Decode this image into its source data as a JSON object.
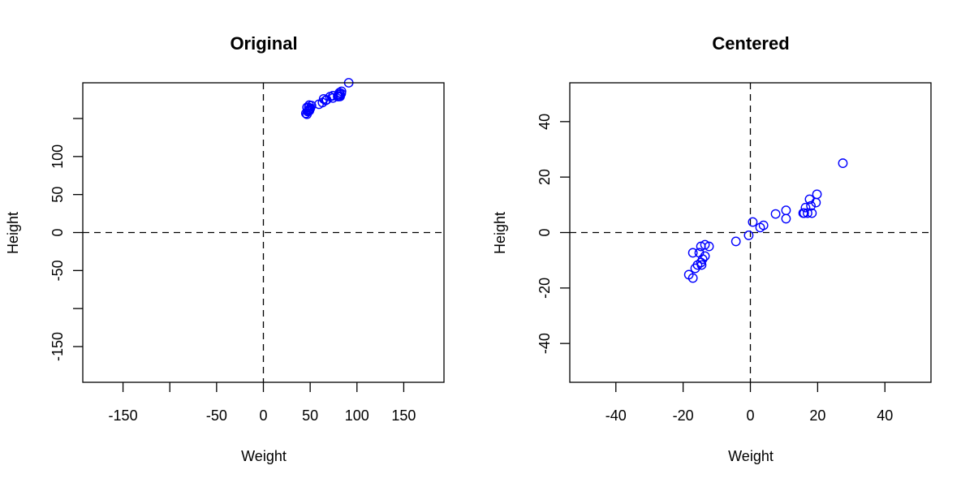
{
  "colors": {
    "points": "#0000ff",
    "axes": "#000000",
    "background": "#ffffff"
  },
  "chart_data": [
    {
      "type": "scatter",
      "title": "Original",
      "xlabel": "Weight",
      "ylabel": "Height",
      "xlim": [
        -193,
        193
      ],
      "ylim": [
        -197,
        197
      ],
      "xticks": [
        -150,
        -100,
        -50,
        0,
        50,
        100,
        150
      ],
      "xtick_labels": [
        "-150",
        "",
        "-50",
        "0",
        "50",
        "100",
        "150"
      ],
      "yticks": [
        -150,
        -100,
        -50,
        0,
        50,
        100,
        150
      ],
      "ytick_labels": [
        "-150",
        "",
        "-50",
        "0",
        "50",
        "100",
        ""
      ],
      "reference_lines": {
        "vertical": 0,
        "horizontal": 0,
        "style": "dashed"
      },
      "grid": false,
      "marker": "open-circle",
      "series": [
        {
          "name": "original",
          "x": [
            91.2,
            83.5,
            83.2,
            81.7,
            81.3,
            80.1,
            79.4,
            79.7,
            80.7,
            82.0,
            74.3,
            74.3,
            71.2,
            67.6,
            66.6,
            64.4,
            63.2,
            59.4,
            51.4,
            49.0,
            46.6,
            48.5,
            50.2,
            49.5,
            49.0,
            49.2,
            48.0,
            47.3,
            45.4,
            46.6
          ],
          "y": [
            197.0,
            185.8,
            182.8,
            181.6,
            184.0,
            181.0,
            179.0,
            179.0,
            179.0,
            179.0,
            180.0,
            177.0,
            178.7,
            174.6,
            173.8,
            175.8,
            171.0,
            168.8,
            167.0,
            167.6,
            164.7,
            164.7,
            163.5,
            162.4,
            161.2,
            160.3,
            160.3,
            159.1,
            156.8,
            155.6
          ]
        }
      ]
    },
    {
      "type": "scatter",
      "title": "Centered",
      "xlabel": "Weight",
      "ylabel": "Height",
      "xlim": [
        -53.7,
        53.7
      ],
      "ylim": [
        -54,
        54
      ],
      "xticks": [
        -40,
        -20,
        0,
        20,
        40
      ],
      "xtick_labels": [
        "-40",
        "-20",
        "0",
        "20",
        "40"
      ],
      "yticks": [
        -40,
        -20,
        0,
        20,
        40
      ],
      "ytick_labels": [
        "-40",
        "-20",
        "0",
        "20",
        "40"
      ],
      "reference_lines": {
        "vertical": 0,
        "horizontal": 0,
        "style": "dashed"
      },
      "grid": false,
      "marker": "open-circle",
      "series": [
        {
          "name": "centered",
          "x": [
            27.5,
            19.8,
            19.5,
            18.0,
            17.6,
            16.4,
            15.7,
            16.0,
            17.0,
            18.3,
            10.6,
            10.6,
            7.5,
            3.9,
            2.9,
            0.7,
            -0.5,
            -4.3,
            -12.3,
            -13.5,
            -14.7,
            -15.2,
            -17.1,
            -13.5,
            -14.2,
            -14.7,
            -14.5,
            -15.7,
            -16.4,
            -18.3,
            -17.1
          ],
          "y": [
            25.0,
            13.8,
            10.8,
            9.6,
            12.0,
            9.0,
            7.0,
            7.0,
            7.0,
            7.0,
            8.0,
            5.0,
            6.7,
            2.6,
            1.8,
            3.8,
            -1.0,
            -3.2,
            -5.0,
            -4.4,
            -5.0,
            -7.3,
            -7.3,
            -8.5,
            -9.6,
            -10.8,
            -11.7,
            -11.7,
            -12.9,
            -15.2,
            -16.4
          ]
        }
      ]
    }
  ],
  "plots": [
    {
      "title": "Original",
      "xlabel": "Weight",
      "ylabel": "Height"
    },
    {
      "title": "Centered",
      "xlabel": "Weight",
      "ylabel": "Height"
    }
  ]
}
